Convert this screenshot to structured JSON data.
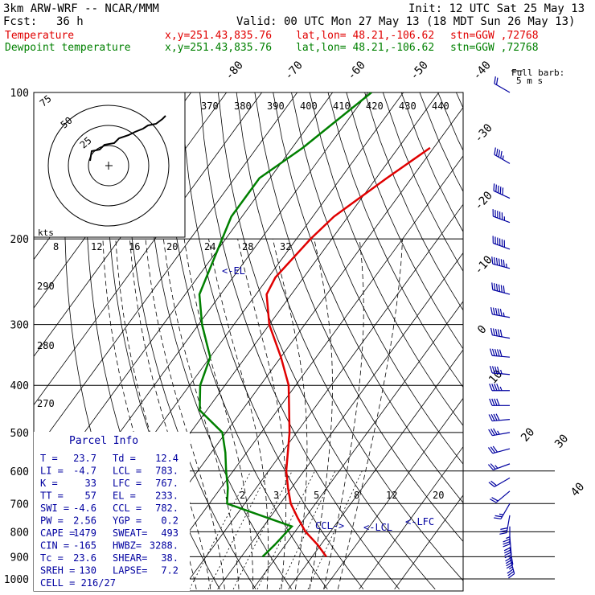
{
  "header": {
    "model": "3km ARW-WRF -- NCAR/MMM",
    "init": "Init: 12 UTC Sat 25 May 13",
    "fcst_label": "Fcst:",
    "fcst_value": "36 h",
    "valid": "Valid: 00 UTC Mon 27 May 13 (18 MDT Sun 26 May 13)",
    "temp_label": "Temperature",
    "dew_label": "Dewpoint temperature",
    "xy": "x,y=251.43,835.76",
    "latlon": "lat,lon= 48.21,-106.62",
    "stn": "stn=GGW ,72768"
  },
  "colors": {
    "temperature": "#e00000",
    "dewpoint": "#008000",
    "wind": "#0000a0",
    "grid": "#000000"
  },
  "barb_legend": {
    "line1": "Full barb:",
    "line2": "5 m s",
    "icon": "wind-barb-icon"
  },
  "parcel_info": {
    "title": "Parcel Info",
    "rows": [
      [
        "T  =",
        "23.7",
        "Td =",
        "12.4"
      ],
      [
        "LI =",
        "-4.7",
        "LCL =",
        "783."
      ],
      [
        "K  =",
        "33",
        "LFC =",
        "767."
      ],
      [
        "TT =",
        "57",
        "EL  =",
        "233."
      ],
      [
        "SWI =",
        "-4.6",
        "CCL =",
        "782."
      ],
      [
        "PW =",
        "2.56",
        "YGP =",
        "0.2"
      ],
      [
        "CAPE =",
        "1479",
        "SWEAT=",
        "493"
      ],
      [
        "CIN =",
        "-165",
        "HWBZ=",
        "3288."
      ],
      [
        "Tc =",
        "23.6",
        "SHEAR=",
        "38."
      ],
      [
        "SREH =",
        "130",
        "LAPSE=",
        "7.2"
      ]
    ],
    "cell": "CELL = 216/27"
  },
  "level_labels": {
    "el": "<-EL",
    "lfc": "<-LFC",
    "lcl": "<-LCL",
    "ccl": "CCL->"
  },
  "hodograph": {
    "kts_label": "kts",
    "ring_labels": [
      "75",
      "50",
      "25"
    ]
  },
  "chart_data": {
    "type": "line",
    "pressure_ticks": [
      100,
      200,
      300,
      400,
      500,
      600,
      700,
      800,
      900,
      1000
    ],
    "isotherm_labels": [
      -80,
      -70,
      -60,
      -50,
      -40,
      -30,
      -20,
      -10,
      0,
      10,
      20,
      30,
      40
    ],
    "theta_labels": [
      370,
      380,
      390,
      400,
      410,
      420,
      430,
      440
    ],
    "theta_left_labels": [
      290,
      280,
      270
    ],
    "mixing_ratio_top": [
      8,
      12,
      16,
      20,
      24,
      28,
      32
    ],
    "mixing_ratio_bottom": [
      2,
      3,
      5,
      8,
      12,
      20
    ],
    "series": [
      {
        "name": "Temperature",
        "points": [
          [
            130,
            -31
          ],
          [
            150,
            -37
          ],
          [
            180,
            -44
          ],
          [
            200,
            -46
          ],
          [
            240,
            -48
          ],
          [
            260,
            -47
          ],
          [
            300,
            -40
          ],
          [
            350,
            -30
          ],
          [
            400,
            -22
          ],
          [
            500,
            -12
          ],
          [
            600,
            -5
          ],
          [
            650,
            -1
          ],
          [
            700,
            3
          ],
          [
            750,
            8
          ],
          [
            800,
            13
          ],
          [
            850,
            19
          ],
          [
            900,
            24
          ]
        ]
      },
      {
        "name": "Dewpoint temperature",
        "points": [
          [
            100,
            -59
          ],
          [
            130,
            -67
          ],
          [
            150,
            -73
          ],
          [
            180,
            -73
          ],
          [
            200,
            -71
          ],
          [
            260,
            -66
          ],
          [
            300,
            -59
          ],
          [
            350,
            -50
          ],
          [
            400,
            -47
          ],
          [
            450,
            -42
          ],
          [
            500,
            -31
          ],
          [
            550,
            -26
          ],
          [
            600,
            -22
          ],
          [
            650,
            -18
          ],
          [
            700,
            -15
          ],
          [
            780,
            8
          ],
          [
            850,
            7
          ],
          [
            900,
            6
          ]
        ]
      }
    ],
    "wind_barbs": [
      {
        "p": 100,
        "dir": 300,
        "spd": 20
      },
      {
        "p": 140,
        "dir": 300,
        "spd": 45
      },
      {
        "p": 165,
        "dir": 295,
        "spd": 50
      },
      {
        "p": 185,
        "dir": 290,
        "spd": 55
      },
      {
        "p": 210,
        "dir": 290,
        "spd": 60
      },
      {
        "p": 230,
        "dir": 285,
        "spd": 65
      },
      {
        "p": 260,
        "dir": 285,
        "spd": 60
      },
      {
        "p": 290,
        "dir": 280,
        "spd": 55
      },
      {
        "p": 320,
        "dir": 280,
        "spd": 50
      },
      {
        "p": 350,
        "dir": 275,
        "spd": 50
      },
      {
        "p": 380,
        "dir": 275,
        "spd": 45
      },
      {
        "p": 410,
        "dir": 270,
        "spd": 45
      },
      {
        "p": 440,
        "dir": 270,
        "spd": 40
      },
      {
        "p": 470,
        "dir": 265,
        "spd": 40
      },
      {
        "p": 500,
        "dir": 260,
        "spd": 35
      },
      {
        "p": 540,
        "dir": 255,
        "spd": 30
      },
      {
        "p": 580,
        "dir": 250,
        "spd": 25
      },
      {
        "p": 620,
        "dir": 240,
        "spd": 20
      },
      {
        "p": 660,
        "dir": 230,
        "spd": 20
      },
      {
        "p": 700,
        "dir": 210,
        "spd": 25
      },
      {
        "p": 740,
        "dir": 190,
        "spd": 30
      },
      {
        "p": 780,
        "dir": 180,
        "spd": 35
      },
      {
        "p": 820,
        "dir": 175,
        "spd": 40
      },
      {
        "p": 860,
        "dir": 170,
        "spd": 40
      },
      {
        "p": 900,
        "dir": 165,
        "spd": 35
      }
    ]
  }
}
